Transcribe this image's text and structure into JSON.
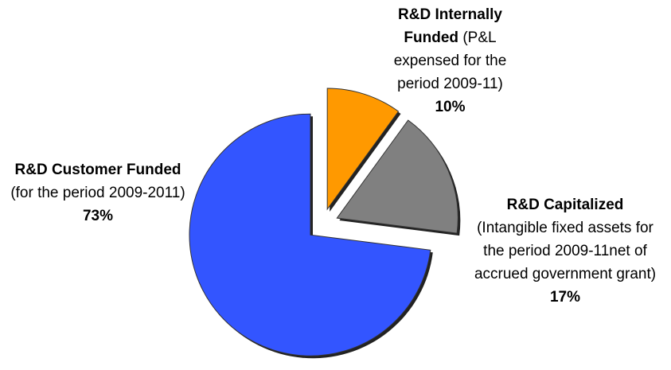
{
  "chart_data": {
    "type": "pie",
    "categories": [
      "R&D Internally Funded",
      "R&D Capitalized",
      "R&D Customer Funded"
    ],
    "descriptions": [
      "(P&L expensed for the period 2009-11)",
      "(Intangible fixed assets for the period 2009-11net of accrued government grant)",
      "(for the period 2009-2011)"
    ],
    "values": [
      10,
      17,
      73
    ],
    "value_labels": [
      "10%",
      "17%",
      "73%"
    ],
    "colors": [
      "#ff9900",
      "#808080",
      "#3355ff"
    ]
  }
}
